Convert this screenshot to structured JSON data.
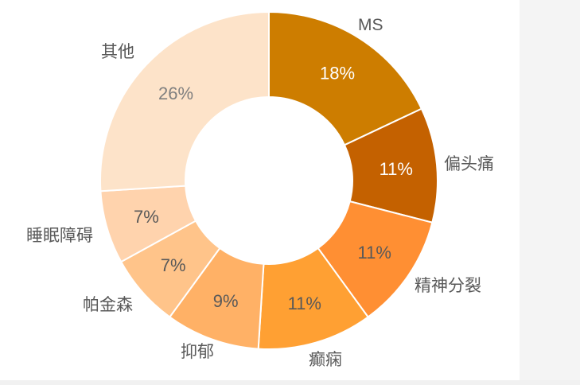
{
  "chart_data": {
    "type": "pie",
    "variant": "donut",
    "title": "",
    "categories": [
      "MS",
      "偏头痛",
      "精神分裂",
      "癫痫",
      "抑郁",
      "帕金森",
      "睡眠障碍",
      "其他"
    ],
    "values": [
      18,
      11,
      11,
      11,
      9,
      7,
      7,
      26
    ],
    "value_labels": [
      "18%",
      "11%",
      "11%",
      "11%",
      "9%",
      "7%",
      "7%",
      "26%"
    ],
    "unit": "%",
    "start_angle": "12 o'clock",
    "direction": "clockwise",
    "legend": "none",
    "colors": [
      "#cd7d00",
      "#c46100",
      "#ff8f33",
      "#ffa033",
      "#ffb166",
      "#ffc48a",
      "#ffd3ad",
      "#fde3c9"
    ],
    "value_label_colors": [
      "#ffffff",
      "#ffffff",
      "#595959",
      "#595959",
      "#595959",
      "#595959",
      "#595959",
      "#7f7f7f"
    ],
    "category_label_color": "#595959"
  }
}
